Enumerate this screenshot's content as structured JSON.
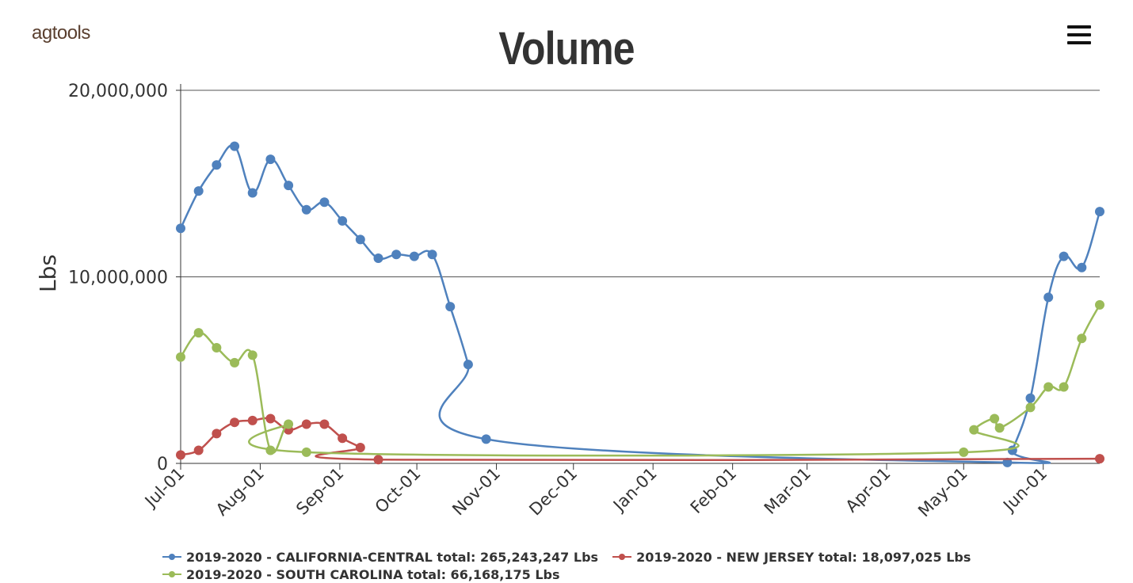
{
  "header": {
    "logo_text": "agtools",
    "menu_icon": "hamburger-menu-icon"
  },
  "chart_data": {
    "type": "line",
    "title": "Volume",
    "ylabel": "Lbs",
    "xlabel": "",
    "ylim": [
      0,
      20000000
    ],
    "yticks": [
      0,
      10000000,
      20000000
    ],
    "ytick_labels": [
      "0",
      "10,000,000",
      "20,000,000"
    ],
    "x_tick_labels": [
      "Jul-01",
      "Aug-01",
      "Sep-01",
      "Oct-01",
      "Nov-01",
      "Dec-01",
      "Jan-01",
      "Feb-01",
      "Mar-01",
      "Apr-01",
      "May-01",
      "Jun-01"
    ],
    "x_tick_dates": [
      "2019-07-01",
      "2019-08-01",
      "2019-09-01",
      "2019-10-01",
      "2019-11-01",
      "2019-12-01",
      "2020-01-01",
      "2020-02-01",
      "2020-03-01",
      "2020-04-01",
      "2020-05-01",
      "2020-06-01"
    ],
    "xlim": [
      "2019-07-01",
      "2020-06-23"
    ],
    "grid": true,
    "legend_position": "bottom",
    "series": [
      {
        "name": "2019-2020 - CALIFORNIA-CENTRAL",
        "legend_label": "2019-2020 - CALIFORNIA-CENTRAL total: 265,243,247 Lbs",
        "color": "#4f81bd",
        "points": [
          [
            "2019-07-01",
            12600000
          ],
          [
            "2019-07-08",
            14600000
          ],
          [
            "2019-07-15",
            16000000
          ],
          [
            "2019-07-22",
            17000000
          ],
          [
            "2019-07-29",
            14500000
          ],
          [
            "2019-08-05",
            16300000
          ],
          [
            "2019-08-12",
            14900000
          ],
          [
            "2019-08-19",
            13600000
          ],
          [
            "2019-08-26",
            14000000
          ],
          [
            "2019-09-02",
            13000000
          ],
          [
            "2019-09-09",
            12000000
          ],
          [
            "2019-09-16",
            11000000
          ],
          [
            "2019-09-23",
            11200000
          ],
          [
            "2019-09-30",
            11100000
          ],
          [
            "2019-10-07",
            11200000
          ],
          [
            "2019-10-14",
            8400000
          ],
          [
            "2019-10-21",
            5300000
          ],
          [
            "2019-10-28",
            1300000
          ],
          [
            "2020-05-18",
            50000
          ],
          [
            "2020-05-20",
            700000
          ],
          [
            "2020-05-27",
            3500000
          ],
          [
            "2020-06-03",
            8900000
          ],
          [
            "2020-06-09",
            11100000
          ],
          [
            "2020-06-16",
            10500000
          ],
          [
            "2020-06-23",
            13500000
          ]
        ]
      },
      {
        "name": "2019-2020 - NEW JERSEY",
        "legend_label": "2019-2020 - NEW JERSEY total: 18,097,025 Lbs",
        "color": "#c0504d",
        "points": [
          [
            "2019-07-01",
            450000
          ],
          [
            "2019-07-08",
            700000
          ],
          [
            "2019-07-15",
            1600000
          ],
          [
            "2019-07-22",
            2200000
          ],
          [
            "2019-07-29",
            2300000
          ],
          [
            "2019-08-05",
            2400000
          ],
          [
            "2019-08-12",
            1800000
          ],
          [
            "2019-08-19",
            2100000
          ],
          [
            "2019-08-26",
            2100000
          ],
          [
            "2019-09-02",
            1350000
          ],
          [
            "2019-09-09",
            850000
          ],
          [
            "2019-09-16",
            200000
          ],
          [
            "2020-06-23",
            250000
          ]
        ]
      },
      {
        "name": "2019-2020 - SOUTH CAROLINA",
        "legend_label": "2019-2020 - SOUTH CAROLINA total: 66,168,175 Lbs",
        "color": "#9bbb59",
        "points": [
          [
            "2019-07-01",
            5700000
          ],
          [
            "2019-07-08",
            7000000
          ],
          [
            "2019-07-15",
            6200000
          ],
          [
            "2019-07-22",
            5400000
          ],
          [
            "2019-07-29",
            5800000
          ],
          [
            "2019-08-05",
            700000
          ],
          [
            "2019-08-12",
            2100000
          ],
          [
            "2019-08-19",
            600000
          ],
          [
            "2020-05-01",
            600000
          ],
          [
            "2020-05-05",
            1800000
          ],
          [
            "2020-05-13",
            2400000
          ],
          [
            "2020-05-15",
            1900000
          ],
          [
            "2020-05-27",
            3000000
          ],
          [
            "2020-06-03",
            4100000
          ],
          [
            "2020-06-09",
            4100000
          ],
          [
            "2020-06-16",
            6700000
          ],
          [
            "2020-06-23",
            8500000
          ]
        ]
      }
    ]
  }
}
